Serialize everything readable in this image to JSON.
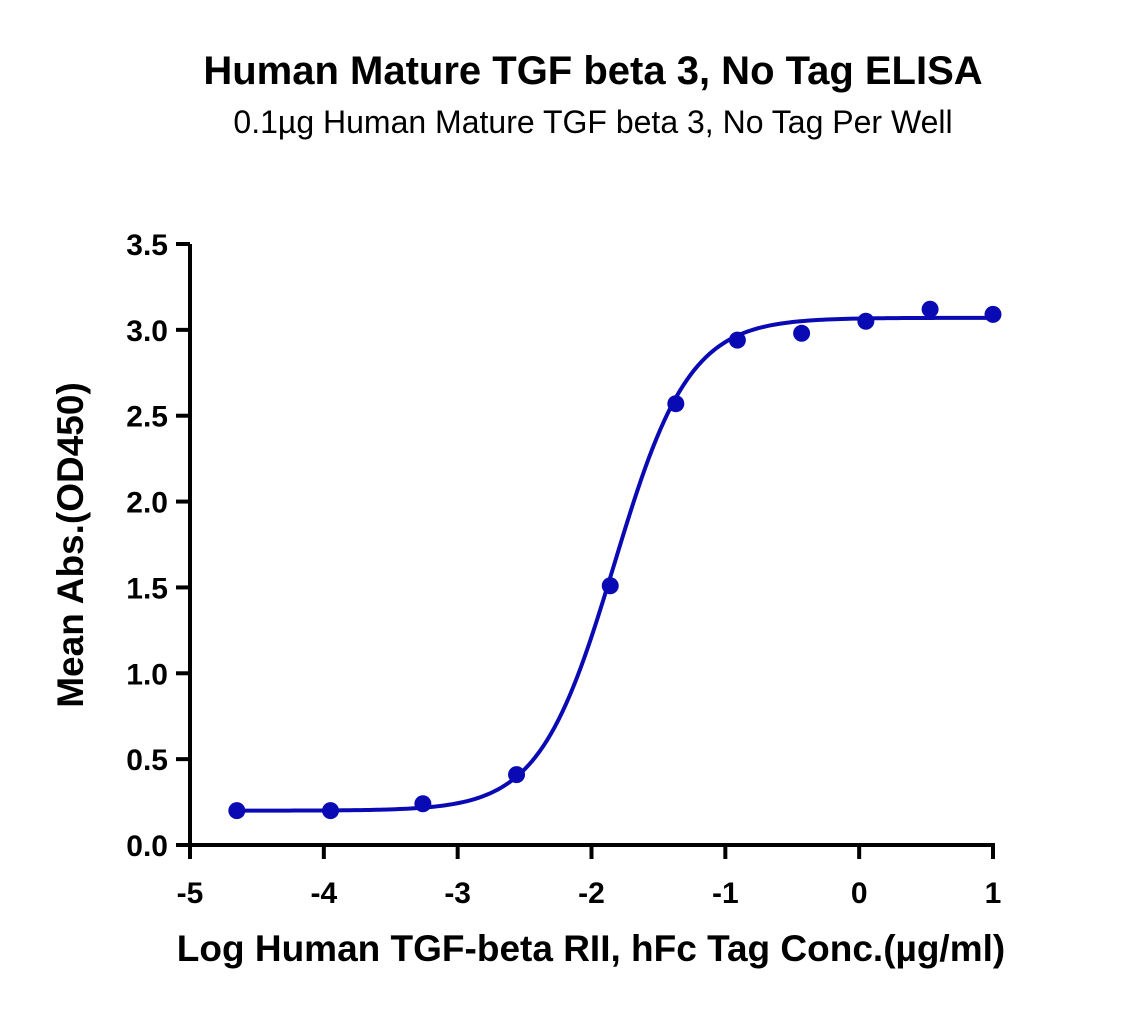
{
  "chart_data": {
    "type": "scatter",
    "title": "Human Mature TGF beta 3, No Tag ELISA",
    "subtitle": "0.1µg Human Mature TGF beta 3, No Tag Per Well",
    "xlabel": "Log Human TGF-beta RII, hFc Tag Conc.(µg/ml)",
    "ylabel": "Mean Abs.(OD450)",
    "xlim": [
      -5,
      1
    ],
    "ylim": [
      0,
      3.5
    ],
    "x_ticks": [
      -5,
      -4,
      -3,
      -2,
      -1,
      0,
      1
    ],
    "x_tick_labels": [
      "-5",
      "-4",
      "-3",
      "-2",
      "-1",
      "0",
      "1"
    ],
    "y_ticks": [
      0,
      0.5,
      1.0,
      1.5,
      2.0,
      2.5,
      3.0,
      3.5
    ],
    "y_tick_labels": [
      "0.0",
      "0.5",
      "1.0",
      "1.5",
      "2.0",
      "2.5",
      "3.0",
      "3.5"
    ],
    "series": [
      {
        "name": "data",
        "color": "#0a0ab4",
        "points": [
          {
            "x": -4.65,
            "y": 0.2
          },
          {
            "x": -3.95,
            "y": 0.2
          },
          {
            "x": -3.26,
            "y": 0.24
          },
          {
            "x": -2.56,
            "y": 0.41
          },
          {
            "x": -1.86,
            "y": 1.51
          },
          {
            "x": -1.37,
            "y": 2.57
          },
          {
            "x": -0.91,
            "y": 2.94
          },
          {
            "x": -0.43,
            "y": 2.98
          },
          {
            "x": 0.05,
            "y": 3.05
          },
          {
            "x": 0.53,
            "y": 3.12
          },
          {
            "x": 1.0,
            "y": 3.09
          }
        ]
      }
    ],
    "fit_curve": {
      "model": "4PL",
      "bottom": 0.2,
      "top": 3.07,
      "log_ec50": -1.83,
      "hill_slope": 1.55,
      "x_range": [
        -4.65,
        1.0
      ],
      "color": "#0a0ab4"
    },
    "grid": false,
    "legend": "none"
  }
}
